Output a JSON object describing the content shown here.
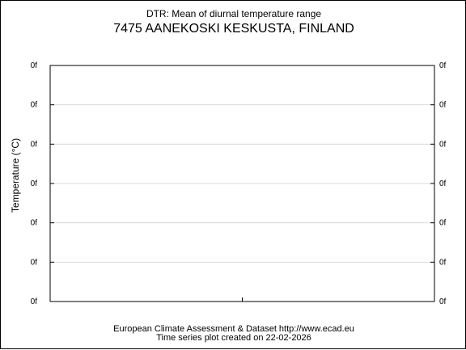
{
  "header": {
    "title": "DTR: Mean of diurnal temperature range",
    "subtitle": "7475 AANEKOSKI KESKUSTA, FINLAND"
  },
  "footer": {
    "line1": "European Climate Assessment & Dataset  http://www.ecad.eu",
    "line2": "Time series plot created on 22-02-2026"
  },
  "chart_data": {
    "type": "line",
    "ylabel": "Temperature (°C)",
    "xlabel": "",
    "y_tick_labels": [
      "0f",
      "0f",
      "0f",
      "0f",
      "0f",
      "0f",
      "0f"
    ],
    "series": [],
    "grid": true,
    "colors": {
      "grid": "#d9d9d9",
      "axis": "#000000"
    }
  }
}
